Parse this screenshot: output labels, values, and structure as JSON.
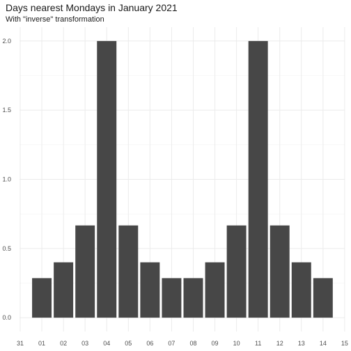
{
  "chart_data": {
    "type": "bar",
    "title": "Days nearest Mondays in January 2021",
    "subtitle": "With \"inverse\" transformation",
    "xlabel": "",
    "ylabel": "",
    "x_ticks": [
      "31",
      "01",
      "02",
      "03",
      "04",
      "05",
      "06",
      "07",
      "08",
      "09",
      "10",
      "11",
      "12",
      "13",
      "14",
      "15"
    ],
    "categories": [
      "01",
      "02",
      "03",
      "04",
      "05",
      "06",
      "07",
      "08",
      "09",
      "10",
      "11",
      "12",
      "13",
      "14"
    ],
    "values": [
      0.2857,
      0.4,
      0.6667,
      2.0,
      0.6667,
      0.4,
      0.2857,
      0.2857,
      0.4,
      0.6667,
      2.0,
      0.6667,
      0.4,
      0.2857
    ],
    "y_ticks": [
      "0.0",
      "0.5",
      "1.0",
      "1.5",
      "2.0"
    ],
    "ylim": [
      -0.1,
      2.1
    ],
    "grid": true,
    "bar_color": "#474747",
    "grid_color": "#ebebeb"
  }
}
